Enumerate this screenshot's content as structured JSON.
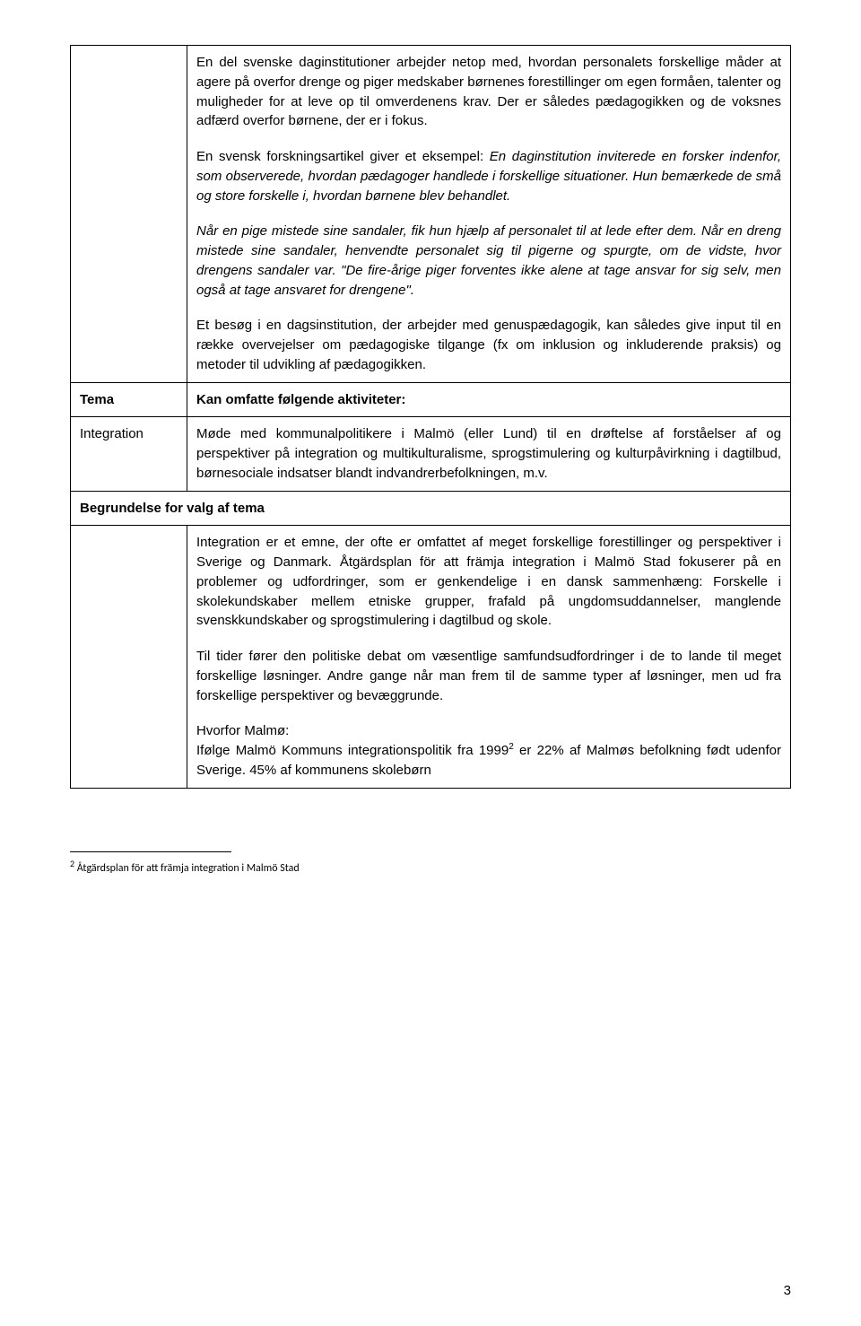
{
  "row1": {
    "left": "",
    "p1": "En del svenske daginstitutioner arbejder netop med, hvordan personalets forskellige måder at agere på overfor drenge og piger medskaber børnenes forestillinger om egen formåen, talenter og muligheder for at leve op til omverdenens krav. Der er således pædagogikken og de voksnes adfærd overfor børnene, der er i fokus.",
    "p2a": "En svensk forskningsartikel giver et eksempel: ",
    "p2b": "En daginstitution inviterede en forsker indenfor, som observerede, hvordan pædagoger handlede i forskellige situationer. Hun bemærkede de små og store forskelle i, hvordan børnene blev behandlet.",
    "p3": "Når en pige mistede sine sandaler, fik hun hjælp af personalet til at lede efter dem. Når en dreng mistede sine sandaler, henvendte personalet sig til pigerne og spurgte, om de vidste, hvor drengens sandaler var. \"De fire-årige piger forventes ikke alene at tage ansvar for sig selv, men også at tage ansvaret for drengene\".",
    "p4": "Et besøg i en dagsinstitution, der arbejder med genuspædagogik, kan således give input til en række overvejelser om pædagogiske tilgange (fx om inklusion og inkluderende praksis) og metoder til udvikling af pædagogikken."
  },
  "row2": {
    "left": "Tema",
    "right": "Kan omfatte følgende aktiviteter:"
  },
  "row3": {
    "left": "Integration",
    "right": "Møde med kommunalpolitikere i Malmö (eller Lund) til en drøftelse af forståelser af og perspektiver på integration og multikulturalisme, sprogstimulering og kulturpåvirkning i dagtilbud, børnesociale indsatser blandt indvandrerbefolkningen, m.v."
  },
  "row4": {
    "heading": "Begrundelse for valg af tema"
  },
  "row5": {
    "left": "",
    "p1": "Integration er et emne, der ofte er omfattet af meget forskellige forestillinger og perspektiver i Sverige og Danmark. Åtgärdsplan för att främja integration i Malmö Stad fokuserer på en problemer og udfordringer, som er genkendelige i en dansk sammenhæng: Forskelle i skolekundskaber mellem etniske grupper, frafald på ungdomsuddannelser, manglende svenskkundskaber og sprogstimulering i dagtilbud og skole.",
    "p2": "Til tider fører den politiske debat om væsentlige samfundsudfordringer i de to lande til meget forskellige løsninger. Andre gange når man frem til de samme typer af løsninger, men ud fra forskellige perspektiver og bevæggrunde.",
    "p3a": "Hvorfor Malmø:",
    "p3b_pre": "Ifølge Malmö Kommuns integrationspolitik fra 1999",
    "p3b_post": " er 22% af Malmøs befolkning født udenfor Sverige. 45% af kommunens skolebørn"
  },
  "footnote": {
    "mark": "2",
    "text": " Åtgärdsplan för att främja integration i Malmö Stad"
  },
  "pageNumber": "3"
}
